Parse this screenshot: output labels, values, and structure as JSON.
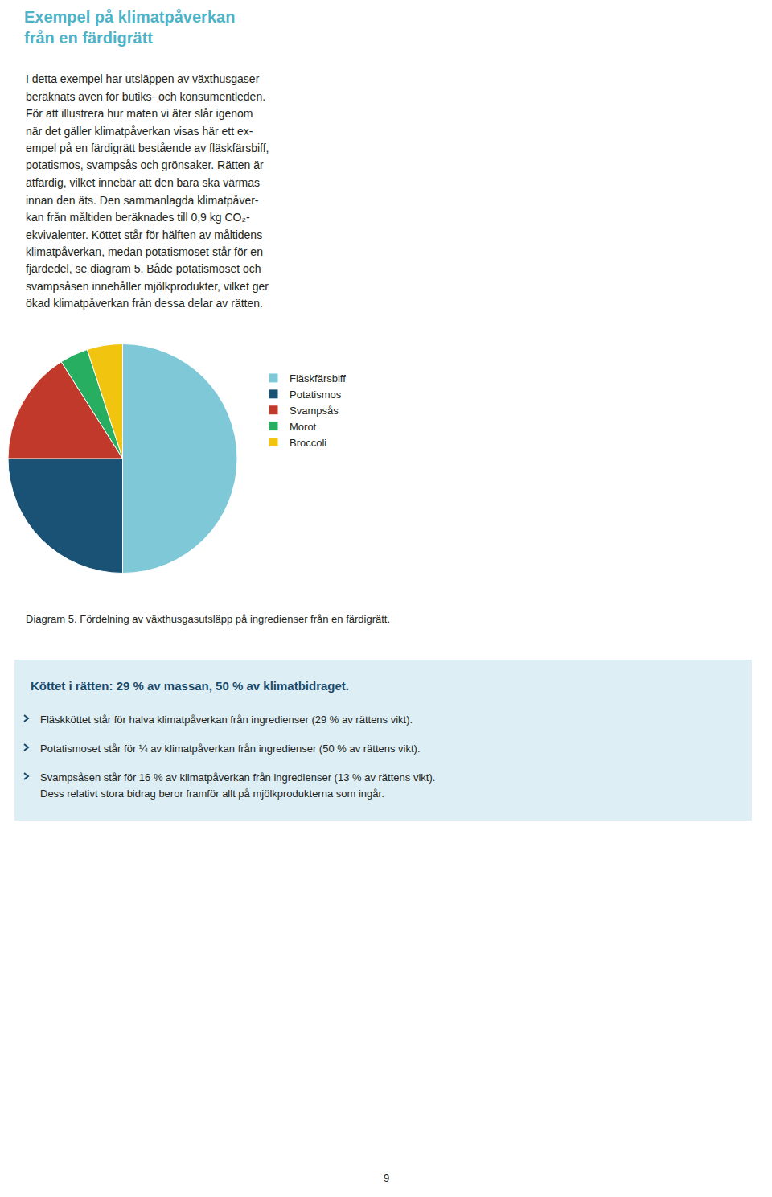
{
  "chart_data": {
    "type": "pie",
    "title": "Exempel på klimatpåverkan\nfrån en färdigrätt",
    "categories": [
      "Fläskfärsbiff",
      "Potatismos",
      "Svampsås",
      "Morot",
      "Broccoli"
    ],
    "values": [
      50,
      25,
      16,
      4,
      5
    ],
    "colors": [
      "#7ec8d8",
      "#1a5276",
      "#c0392b",
      "#27ae60",
      "#f1c40f"
    ],
    "legend": "right",
    "annotations": [
      "I detta exempel har utsläppen av växthusgaser",
      "beräknats även för butiks- och konsumentleden.",
      "För att illustrera hur maten vi äter slår igenom",
      "när det gäller klimatpåverkan visas här ett ex-",
      "empel på en färdigrätt bestående av fläskfärsbiff,",
      "potatismos, svampsås och grönsaker. Rätten är",
      "ätfärdig, vilket innebär att den bara ska värmas",
      "innan den äts. Den sammanlagda klimatpåver-",
      "kan från måltiden beräknades till 0,9 kg CO₂-",
      "ekvivalenter. Köttet står för hälften av måltidens",
      "klimatpåverkan, medan potatismoset står för en",
      "fjärdedel, se diagram 5. Både potatismoset och",
      "svampsåsen innehåller mjölkprodukter, vilket ger",
      "ökad klimatpåverkan från dessa delar av rätten.",
      "Diagram 5. Fördelning av växthusgasutsläpp på ingredienser från en färdigrätt.",
      "Köttet i rätten: 29 % av massan, 50 % av klimatbidraget.",
      "Fläskköttet står för halva klimatpåverkan från ingredienser (29 % av rättens vikt).",
      "Potatismoset står för ¼ av klimatpåverkan från ingredienser (50 % av rättens vikt).",
      "Svampsåsen står för 16 % av klimatpåverkan från ingredienser (13 % av rättens vikt).",
      "Dess relativt stora bidrag beror framför allt på mjölkprodukterna som ingår.",
      "9"
    ]
  }
}
